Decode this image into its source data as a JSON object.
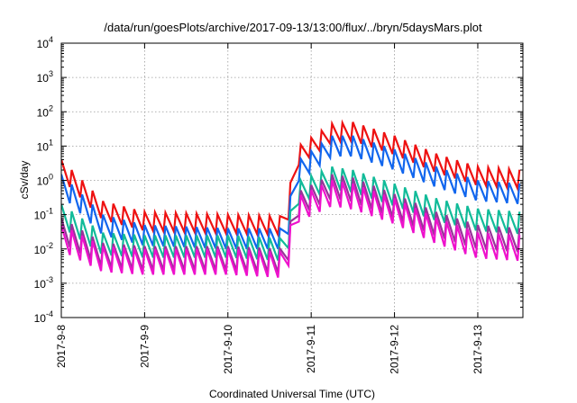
{
  "chart_data": {
    "type": "line",
    "title": "/data/run/goesPlots/archive/2017-09-13/13:00/flux/../bryn/5daysMars.plot",
    "xlabel": "Coordinated Universal Time (UTC)",
    "ylabel": "cSv/day",
    "yscale": "log",
    "ylim": [
      0.0001,
      10000
    ],
    "y_ticks": [
      {
        "base": "10",
        "exp": "-4"
      },
      {
        "base": "10",
        "exp": "-3"
      },
      {
        "base": "10",
        "exp": "-2"
      },
      {
        "base": "10",
        "exp": "-1"
      },
      {
        "base": "10",
        "exp": "0"
      },
      {
        "base": "10",
        "exp": "1"
      },
      {
        "base": "10",
        "exp": "2"
      },
      {
        "base": "10",
        "exp": "3"
      },
      {
        "base": "10",
        "exp": "4"
      }
    ],
    "x_ticks": [
      "2017-9-8",
      "2017-9-9",
      "2017-9-10",
      "2017-9-11",
      "2017-9-12",
      "2017-9-13"
    ],
    "xlim": [
      "2017-09-08 00:00",
      "2017-09-13 13:00"
    ],
    "grid": true,
    "legend": "none",
    "sawtooth_period_hours": 3,
    "series": [
      {
        "color": "#ee1111",
        "points": [
          [
            "2017-09-08 00:00",
            4.0
          ],
          [
            "2017-09-08 12:00",
            0.25
          ],
          [
            "2017-09-09 00:00",
            0.12
          ],
          [
            "2017-09-10 00:00",
            0.1
          ],
          [
            "2017-09-10 17:00",
            0.09
          ],
          [
            "2017-09-10 19:00",
            8
          ],
          [
            "2017-09-11 06:00",
            45
          ],
          [
            "2017-09-11 12:00",
            50
          ],
          [
            "2017-09-12 00:00",
            20
          ],
          [
            "2017-09-12 12:00",
            6
          ],
          [
            "2017-09-13 00:00",
            2.5
          ],
          [
            "2017-09-13 13:00",
            2.0
          ]
        ]
      },
      {
        "color": "#1166ee",
        "points": [
          [
            "2017-09-08 00:00",
            1.5
          ],
          [
            "2017-09-08 12:00",
            0.1
          ],
          [
            "2017-09-09 00:00",
            0.05
          ],
          [
            "2017-09-10 00:00",
            0.04
          ],
          [
            "2017-09-10 17:00",
            0.04
          ],
          [
            "2017-09-10 19:00",
            3
          ],
          [
            "2017-09-11 06:00",
            20
          ],
          [
            "2017-09-11 12:00",
            20
          ],
          [
            "2017-09-12 00:00",
            8
          ],
          [
            "2017-09-12 12:00",
            2.5
          ],
          [
            "2017-09-13 00:00",
            1.0
          ],
          [
            "2017-09-13 13:00",
            0.8
          ]
        ]
      },
      {
        "color": "#11bb99",
        "points": [
          [
            "2017-09-08 00:00",
            0.2
          ],
          [
            "2017-09-08 12:00",
            0.03
          ],
          [
            "2017-09-09 00:00",
            0.025
          ],
          [
            "2017-09-10 00:00",
            0.025
          ],
          [
            "2017-09-10 17:00",
            0.02
          ],
          [
            "2017-09-10 19:00",
            0.8
          ],
          [
            "2017-09-11 06:00",
            2.5
          ],
          [
            "2017-09-11 12:00",
            2.0
          ],
          [
            "2017-09-12 00:00",
            0.8
          ],
          [
            "2017-09-12 12:00",
            0.3
          ],
          [
            "2017-09-13 00:00",
            0.15
          ],
          [
            "2017-09-13 13:00",
            0.12
          ]
        ]
      },
      {
        "color": "#993399",
        "points": [
          [
            "2017-09-08 00:00",
            0.08
          ],
          [
            "2017-09-08 12:00",
            0.015
          ],
          [
            "2017-09-09 00:00",
            0.012
          ],
          [
            "2017-09-10 00:00",
            0.012
          ],
          [
            "2017-09-10 17:00",
            0.01
          ],
          [
            "2017-09-10 19:00",
            0.4
          ],
          [
            "2017-09-11 06:00",
            1.5
          ],
          [
            "2017-09-11 12:00",
            1.2
          ],
          [
            "2017-09-12 00:00",
            0.4
          ],
          [
            "2017-09-12 12:00",
            0.12
          ],
          [
            "2017-09-13 00:00",
            0.05
          ],
          [
            "2017-09-13 13:00",
            0.04
          ]
        ]
      },
      {
        "color": "#ee11cc",
        "points": [
          [
            "2017-09-08 00:00",
            0.05
          ],
          [
            "2017-09-08 12:00",
            0.012
          ],
          [
            "2017-09-09 00:00",
            0.01
          ],
          [
            "2017-09-10 00:00",
            0.01
          ],
          [
            "2017-09-10 17:00",
            0.008
          ],
          [
            "2017-09-10 19:00",
            0.3
          ],
          [
            "2017-09-11 06:00",
            1.0
          ],
          [
            "2017-09-11 12:00",
            0.8
          ],
          [
            "2017-09-12 00:00",
            0.3
          ],
          [
            "2017-09-12 12:00",
            0.08
          ],
          [
            "2017-09-13 00:00",
            0.03
          ],
          [
            "2017-09-13 13:00",
            0.025
          ]
        ]
      }
    ]
  }
}
